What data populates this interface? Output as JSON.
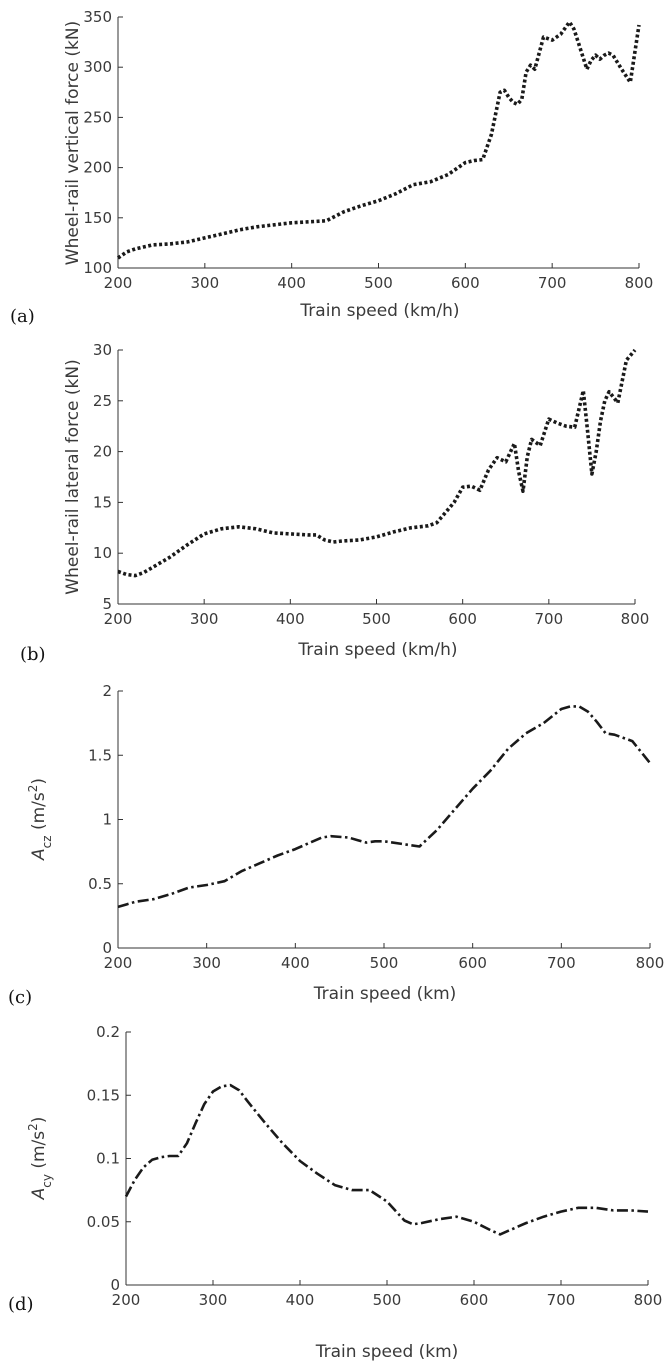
{
  "chart_data": [
    {
      "panel": "(a)",
      "type": "line",
      "xlabel": "Train speed (km/h)",
      "ylabel": "Wheel-rail vertical force (kN)",
      "xlim": [
        200,
        800
      ],
      "ylim": [
        100,
        350
      ],
      "xticks": [
        200,
        300,
        400,
        500,
        600,
        700,
        800
      ],
      "yticks": [
        100,
        150,
        200,
        250,
        300,
        350
      ],
      "line_style": "dotted",
      "series": [
        {
          "x": [
            200,
            210,
            220,
            230,
            240,
            260,
            280,
            300,
            320,
            340,
            360,
            380,
            400,
            420,
            440,
            460,
            480,
            500,
            520,
            540,
            560,
            580,
            600,
            610,
            620,
            630,
            640,
            645,
            650,
            655,
            660,
            665,
            670,
            675,
            680,
            690,
            700,
            710,
            720,
            725,
            730,
            740,
            745,
            750,
            755,
            760,
            765,
            770,
            780,
            790,
            800
          ],
          "y": [
            110,
            116,
            119,
            121,
            123,
            124,
            126,
            130,
            134,
            138,
            141,
            143,
            145,
            146,
            147,
            156,
            162,
            167,
            174,
            183,
            186,
            193,
            205,
            207,
            208,
            233,
            275,
            277,
            270,
            265,
            263,
            268,
            295,
            302,
            298,
            330,
            327,
            333,
            345,
            338,
            325,
            298,
            307,
            312,
            308,
            312,
            314,
            312,
            298,
            285,
            342
          ]
        }
      ]
    },
    {
      "panel": "(b)",
      "type": "line",
      "xlabel": "Train speed (km/h)",
      "ylabel": "Wheel-rail lateral force (kN)",
      "xlim": [
        200,
        800
      ],
      "ylim": [
        5,
        30
      ],
      "xticks": [
        200,
        300,
        400,
        500,
        600,
        700,
        800
      ],
      "yticks": [
        5,
        10,
        15,
        20,
        25,
        30
      ],
      "line_style": "dotted",
      "series": [
        {
          "x": [
            200,
            210,
            220,
            230,
            240,
            260,
            280,
            300,
            320,
            340,
            360,
            380,
            400,
            420,
            430,
            440,
            450,
            460,
            480,
            500,
            520,
            540,
            560,
            570,
            580,
            590,
            600,
            610,
            620,
            630,
            640,
            650,
            660,
            665,
            670,
            675,
            680,
            690,
            700,
            710,
            720,
            730,
            740,
            745,
            750,
            755,
            760,
            765,
            770,
            780,
            790,
            800
          ],
          "y": [
            8.2,
            7.9,
            7.8,
            8.1,
            8.6,
            9.6,
            10.8,
            11.9,
            12.4,
            12.6,
            12.4,
            12.0,
            11.9,
            11.8,
            11.8,
            11.3,
            11.1,
            11.2,
            11.3,
            11.6,
            12.1,
            12.5,
            12.7,
            13.0,
            14.0,
            15.0,
            16.5,
            16.6,
            16.2,
            18.2,
            19.4,
            19.0,
            20.8,
            18.0,
            16.1,
            19.5,
            21.2,
            20.6,
            23.2,
            22.8,
            22.5,
            22.4,
            26.0,
            22.0,
            17.8,
            20.0,
            23.0,
            25.0,
            25.9,
            24.8,
            29.0,
            30.0
          ]
        }
      ]
    },
    {
      "panel": "(c)",
      "type": "line",
      "xlabel": "Train speed (km)",
      "ylabel": "A",
      "ylabel_sub": "cz",
      "ylabel_unit": " (m/s",
      "ylabel_sup": "2",
      "ylabel_close": ")",
      "xlim": [
        200,
        800
      ],
      "ylim": [
        0,
        2
      ],
      "xticks": [
        200,
        300,
        400,
        500,
        600,
        700,
        800
      ],
      "yticks": [
        0,
        0.5,
        1,
        1.5,
        2
      ],
      "line_style": "dash-dot",
      "series": [
        {
          "x": [
            200,
            220,
            240,
            260,
            280,
            300,
            320,
            340,
            360,
            380,
            400,
            420,
            430,
            440,
            460,
            470,
            480,
            490,
            500,
            520,
            540,
            560,
            580,
            600,
            620,
            640,
            660,
            680,
            700,
            710,
            720,
            730,
            740,
            750,
            760,
            780,
            800
          ],
          "y": [
            0.32,
            0.36,
            0.38,
            0.42,
            0.47,
            0.49,
            0.52,
            0.6,
            0.66,
            0.72,
            0.77,
            0.83,
            0.86,
            0.87,
            0.86,
            0.84,
            0.82,
            0.83,
            0.83,
            0.81,
            0.79,
            0.92,
            1.08,
            1.24,
            1.38,
            1.55,
            1.67,
            1.75,
            1.86,
            1.88,
            1.88,
            1.84,
            1.76,
            1.67,
            1.66,
            1.61,
            1.44
          ]
        }
      ]
    },
    {
      "panel": "(d)",
      "type": "line",
      "xlabel": "Train speed (km)",
      "ylabel": "A",
      "ylabel_sub": "cy",
      "ylabel_unit": " (m/s",
      "ylabel_sup": "2",
      "ylabel_close": ")",
      "xlim": [
        200,
        800
      ],
      "ylim": [
        0,
        0.2
      ],
      "xticks": [
        200,
        300,
        400,
        500,
        600,
        700,
        800
      ],
      "yticks": [
        0,
        0.05,
        0.1,
        0.15,
        0.2
      ],
      "line_style": "dash-dot",
      "series": [
        {
          "x": [
            200,
            210,
            220,
            230,
            240,
            250,
            260,
            270,
            280,
            290,
            300,
            310,
            320,
            330,
            340,
            360,
            380,
            400,
            420,
            440,
            460,
            480,
            500,
            520,
            530,
            540,
            560,
            580,
            600,
            620,
            630,
            640,
            660,
            680,
            700,
            720,
            740,
            760,
            780,
            800
          ],
          "y": [
            0.07,
            0.083,
            0.093,
            0.099,
            0.101,
            0.102,
            0.102,
            0.112,
            0.128,
            0.143,
            0.153,
            0.157,
            0.158,
            0.154,
            0.145,
            0.128,
            0.112,
            0.098,
            0.088,
            0.079,
            0.075,
            0.075,
            0.066,
            0.051,
            0.048,
            0.049,
            0.052,
            0.054,
            0.05,
            0.043,
            0.04,
            0.043,
            0.049,
            0.054,
            0.058,
            0.061,
            0.061,
            0.059,
            0.059,
            0.058
          ]
        }
      ]
    }
  ]
}
